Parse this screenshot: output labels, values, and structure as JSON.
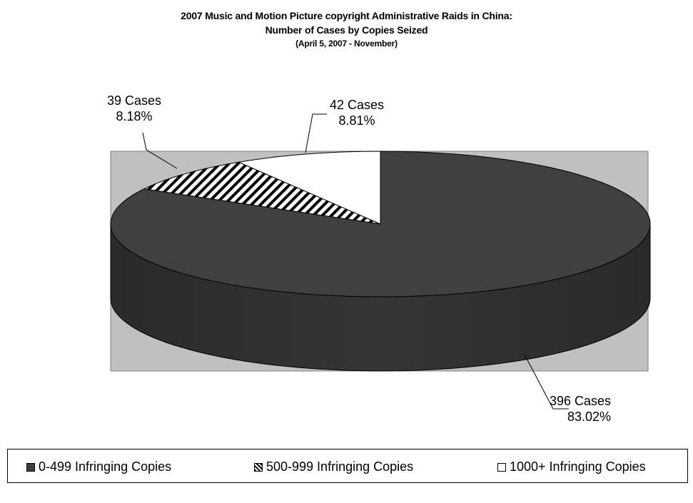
{
  "chart_data": {
    "type": "pie",
    "title": "2007 Music and Motion Picture copyright Administrative Raids in China:",
    "subtitle": "Number of Cases by Copies Seized",
    "subtitle2": "(April 5, 2007 - November)",
    "series": [
      {
        "name": "0-499 Infringing Copies",
        "value": 396,
        "percent": 83.02,
        "label_cases": "396 Cases",
        "label_percent": "83.02%",
        "fill": "#404040",
        "pattern": "solid"
      },
      {
        "name": "500-999 Infringing Copies",
        "value": 39,
        "percent": 8.18,
        "label_cases": "39 Cases",
        "label_percent": "8.18%",
        "fill": "#ffffff",
        "pattern": "diagonal-stripes"
      },
      {
        "name": "1000+ Infringing Copies",
        "value": 42,
        "percent": 8.81,
        "label_cases": "42 Cases",
        "label_percent": "8.81%",
        "fill": "#ffffff",
        "pattern": "none"
      }
    ],
    "legend_position": "bottom",
    "plot_area_color": "#c0c0c0",
    "style": "3d-pie"
  }
}
